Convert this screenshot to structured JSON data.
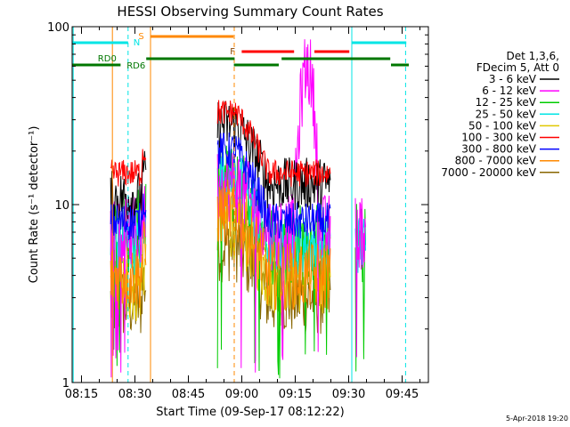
{
  "chart_data": {
    "type": "line",
    "title": "HESSI Observing Summary Count Rates",
    "xlabel": "Start Time (09-Sep-17 08:12:22)",
    "ylabel": "Count Rate (s⁻¹ detector⁻¹)",
    "y_scale": "log",
    "ylim": [
      1,
      100
    ],
    "xlim_minutes": [
      0,
      100
    ],
    "xticks": [
      "08:15",
      "08:30",
      "08:45",
      "09:00",
      "09:15",
      "09:30",
      "09:45"
    ],
    "yticks": [
      "1",
      "10",
      "100"
    ],
    "footer_timestamp": "5-Apr-2018 19:20",
    "legend": {
      "header_lines": [
        "Det 1,3,6,",
        "FDecim 5, Att 0"
      ],
      "placement": "right"
    },
    "series": [
      {
        "name": "3 - 6 keV",
        "color": "#000000"
      },
      {
        "name": "6 - 12 keV",
        "color": "#ff00ff"
      },
      {
        "name": "12 - 25 keV",
        "color": "#00cc00"
      },
      {
        "name": "25 - 50 keV",
        "color": "#00e5e5"
      },
      {
        "name": "50 - 100 keV",
        "color": "#e0c800"
      },
      {
        "name": "100 - 300 keV",
        "color": "#ff0000"
      },
      {
        "name": "300 - 800 keV",
        "color": "#0000ff"
      },
      {
        "name": "800 - 7000 keV",
        "color": "#ff8800"
      },
      {
        "name": "7000 - 20000 keV",
        "color": "#886600"
      }
    ],
    "flag_labels": {
      "saa": "S",
      "night": "N",
      "flare": "F",
      "rd0": "RD0",
      "rd6": "RD6"
    }
  }
}
